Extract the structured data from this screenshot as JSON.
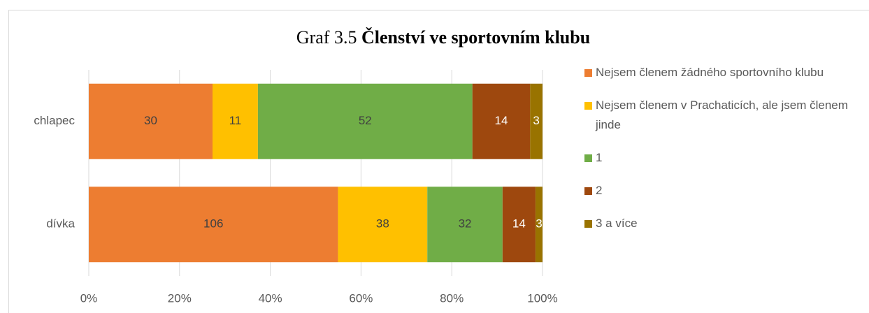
{
  "chart_data": {
    "type": "bar",
    "orientation": "horizontal",
    "stacked": "percent",
    "title": [
      "Graf 3.5",
      "Členství ve sportovním klubu"
    ],
    "categories": [
      "chlapec",
      "dívka"
    ],
    "series": [
      {
        "name": "Nejsem členem žádného sportovního klubu",
        "color": "#ED7D31",
        "values": [
          30,
          106
        ]
      },
      {
        "name": "Nejsem členem  v Prachaticích, ale jsem členem jinde",
        "color": "#FFC000",
        "values": [
          11,
          38
        ]
      },
      {
        "name": "1",
        "color": "#70AD47",
        "values": [
          52,
          32
        ]
      },
      {
        "name": "2",
        "color": "#9E480E",
        "values": [
          14,
          14
        ]
      },
      {
        "name": "3 a více",
        "color": "#997300",
        "values": [
          3,
          3
        ]
      }
    ],
    "xlim": [
      0,
      100
    ],
    "xticks": [
      {
        "value": 0,
        "label": "0%"
      },
      {
        "value": 20,
        "label": "20%"
      },
      {
        "value": 40,
        "label": "40%"
      },
      {
        "value": 60,
        "label": "60%"
      },
      {
        "value": 80,
        "label": "80%"
      },
      {
        "value": 100,
        "label": "100%"
      }
    ],
    "grid": true,
    "legend": "right"
  }
}
